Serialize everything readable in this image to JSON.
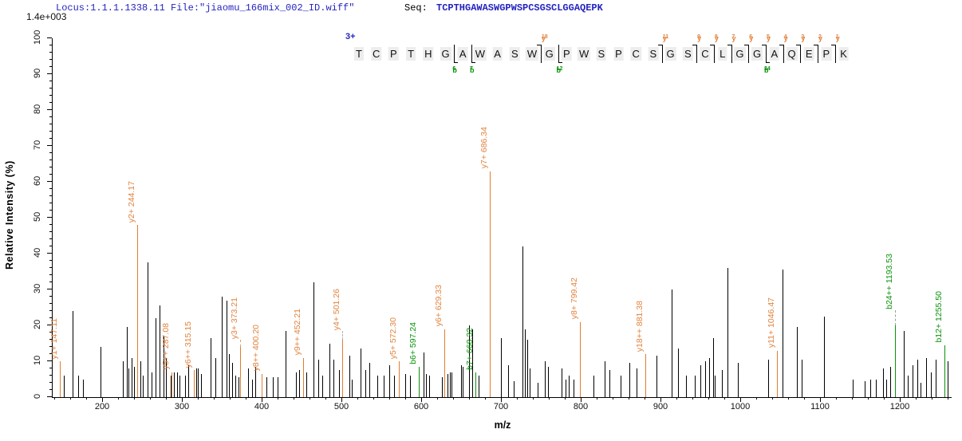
{
  "header": {
    "locus_file": "Locus:1.1.1.1338.11 File:\"jiaomu_166mix_002_ID.wiff\"",
    "seq_label": "Seq:",
    "sequence": "TCPTHGAWASWGPWSPCSGSCLGGAQEPK"
  },
  "colors": {
    "header_blue": "#2424c0",
    "y_ion": "#e07e2e",
    "y_ion_label": "#e2833f",
    "b_ion": "#0a930a",
    "peak_black": "#000000"
  },
  "chart_data": {
    "type": "bar",
    "chart_kind": "ms2-fragmentation-spectrum",
    "title": "",
    "xlabel": "m/z",
    "ylabel": "Relative  Intensity  (%)",
    "intensity_scale": "1.4e+003",
    "xlim": [
      138,
      1265
    ],
    "ylim": [
      0,
      100
    ],
    "x_tick_labels": [
      200,
      300,
      400,
      500,
      600,
      700,
      800,
      900,
      1000,
      1100,
      1200
    ],
    "x_minor_step": 20,
    "y_tick_step": 10,
    "y_minor_step": 2,
    "grid": false,
    "peptide": {
      "charge": "3+",
      "sequence": "TCPTHGAWASWGPWSPCSGSCLGGAQEPK",
      "fragment_markers": [
        {
          "after": 6,
          "b": "b6"
        },
        {
          "after": 7,
          "b": "b7"
        },
        {
          "after": 11,
          "y": "y18"
        },
        {
          "after": 12,
          "b": "b12"
        },
        {
          "after": 18,
          "y": "y11"
        },
        {
          "after": 20,
          "y": "y9"
        },
        {
          "after": 21,
          "y": "y8"
        },
        {
          "after": 22,
          "y": "y7"
        },
        {
          "after": 23,
          "y": "y6"
        },
        {
          "after": 24,
          "y": "y5",
          "b": "b24"
        },
        {
          "after": 25,
          "y": "y4"
        },
        {
          "after": 26,
          "y": "y3"
        },
        {
          "after": 27,
          "y": "y2"
        },
        {
          "after": 28,
          "y": "y1"
        }
      ]
    },
    "labeled_peaks": [
      {
        "ion": "y1+",
        "mz": "147.11",
        "intensity": 10,
        "series": "y"
      },
      {
        "ion": "y2+",
        "mz": "244.17",
        "intensity": 48,
        "series": "y"
      },
      {
        "ion": "y5++",
        "mz": "287.08",
        "intensity": 7,
        "series": "y"
      },
      {
        "ion": "y6++",
        "mz": "315.15",
        "intensity": 7.5,
        "series": "y"
      },
      {
        "ion": "y3+",
        "mz": "373.21",
        "intensity": 14,
        "series": "y",
        "leader": 10,
        "leader_color": "#dba05f"
      },
      {
        "ion": "y8++",
        "mz": "400.20",
        "intensity": 6.5,
        "series": "y"
      },
      {
        "ion": "y9++",
        "mz": "452.21",
        "intensity": 11,
        "series": "y"
      },
      {
        "ion": "y4+",
        "mz": "501.26",
        "intensity": 16,
        "series": "y",
        "leader": 12,
        "leader_color": "#a8b4c4"
      },
      {
        "ion": "y5+",
        "mz": "572.30",
        "intensity": 10,
        "series": "y"
      },
      {
        "ion": "b6+",
        "mz": "597.24",
        "intensity": 8.5,
        "series": "b"
      },
      {
        "ion": "y6+",
        "mz": "629.33",
        "intensity": 19,
        "series": "y"
      },
      {
        "ion": "b7+",
        "mz": "668.32",
        "intensity": 7,
        "series": "b"
      },
      {
        "ion": "y7+",
        "mz": "686.34",
        "intensity": 63,
        "series": "y"
      },
      {
        "ion": "y8+",
        "mz": "799.42",
        "intensity": 21,
        "series": "y"
      },
      {
        "ion": "y18++",
        "mz": "881.38",
        "intensity": 12,
        "series": "y"
      },
      {
        "ion": "y11+",
        "mz": "1046.47",
        "intensity": 13,
        "series": "y"
      },
      {
        "ion": "b24++",
        "mz": "1193.53",
        "intensity": 20,
        "series": "b",
        "leader": 20,
        "leader_color": "#90a890"
      },
      {
        "ion": "b12+",
        "mz": "1255.50",
        "intensity": 14.5,
        "series": "b"
      }
    ],
    "unlabeled_peaks": [
      [
        152,
        6
      ],
      [
        163,
        24
      ],
      [
        170,
        6
      ],
      [
        176,
        5
      ],
      [
        198,
        14
      ],
      [
        226,
        10
      ],
      [
        231,
        19.5
      ],
      [
        233,
        8
      ],
      [
        237,
        11
      ],
      [
        240,
        8.5
      ],
      [
        248,
        10
      ],
      [
        251,
        6
      ],
      [
        257,
        37.5
      ],
      [
        262,
        7
      ],
      [
        267,
        22
      ],
      [
        272,
        25.5
      ],
      [
        277,
        17
      ],
      [
        280,
        11
      ],
      [
        286,
        6
      ],
      [
        290,
        7
      ],
      [
        294,
        7
      ],
      [
        297,
        6
      ],
      [
        304,
        6
      ],
      [
        308,
        9
      ],
      [
        318,
        8
      ],
      [
        320,
        8
      ],
      [
        324,
        6.5
      ],
      [
        336,
        16.5
      ],
      [
        342,
        11
      ],
      [
        350,
        28
      ],
      [
        356,
        27
      ],
      [
        359,
        12
      ],
      [
        363,
        9.5
      ],
      [
        367,
        6
      ],
      [
        371,
        5.5
      ],
      [
        383,
        8
      ],
      [
        388,
        5
      ],
      [
        392,
        8.5
      ],
      [
        406,
        5.5
      ],
      [
        414,
        5.5
      ],
      [
        420,
        5.5
      ],
      [
        430,
        18.5
      ],
      [
        443,
        7
      ],
      [
        447,
        7.5
      ],
      [
        456,
        7
      ],
      [
        465,
        32
      ],
      [
        471,
        10.5
      ],
      [
        476,
        6
      ],
      [
        485,
        15
      ],
      [
        490,
        10.5
      ],
      [
        497,
        7.5
      ],
      [
        510,
        11.5
      ],
      [
        513,
        5
      ],
      [
        524,
        13.5
      ],
      [
        530,
        7.5
      ],
      [
        535,
        9.5
      ],
      [
        545,
        6
      ],
      [
        553,
        6
      ],
      [
        560,
        9
      ],
      [
        566,
        6
      ],
      [
        580,
        6.5
      ],
      [
        586,
        6
      ],
      [
        603,
        12.5
      ],
      [
        606,
        6.5
      ],
      [
        610,
        6
      ],
      [
        626,
        5.5
      ],
      [
        633,
        6.5
      ],
      [
        636,
        7
      ],
      [
        638,
        7
      ],
      [
        650,
        9
      ],
      [
        652,
        8.5
      ],
      [
        660,
        20
      ],
      [
        664,
        19
      ],
      [
        672,
        6
      ],
      [
        700,
        16.5
      ],
      [
        709,
        9
      ],
      [
        716,
        4.5
      ],
      [
        727,
        42
      ],
      [
        730,
        19
      ],
      [
        733,
        16
      ],
      [
        736,
        8
      ],
      [
        746,
        4
      ],
      [
        755,
        10
      ],
      [
        759,
        8.5
      ],
      [
        776,
        8
      ],
      [
        781,
        5
      ],
      [
        785,
        6
      ],
      [
        791,
        5
      ],
      [
        816,
        6
      ],
      [
        830,
        10
      ],
      [
        836,
        7.5
      ],
      [
        850,
        6
      ],
      [
        861,
        9.5
      ],
      [
        870,
        8
      ],
      [
        895,
        11.5
      ],
      [
        914,
        30
      ],
      [
        922,
        13.5
      ],
      [
        932,
        6
      ],
      [
        943,
        6
      ],
      [
        950,
        9
      ],
      [
        956,
        10
      ],
      [
        961,
        11
      ],
      [
        966,
        16.5
      ],
      [
        968,
        6
      ],
      [
        977,
        7.5
      ],
      [
        984,
        36
      ],
      [
        997,
        9.5
      ],
      [
        1035,
        10.5
      ],
      [
        1053,
        35.5
      ],
      [
        1071,
        19.5
      ],
      [
        1077,
        10.5
      ],
      [
        1105,
        22.5
      ],
      [
        1141,
        5
      ],
      [
        1156,
        4.5
      ],
      [
        1163,
        5
      ],
      [
        1170,
        5
      ],
      [
        1179,
        8
      ],
      [
        1183,
        5
      ],
      [
        1188,
        8.5
      ],
      [
        1205,
        18.5
      ],
      [
        1210,
        6
      ],
      [
        1216,
        9
      ],
      [
        1222,
        10.5
      ],
      [
        1226,
        4
      ],
      [
        1233,
        11
      ],
      [
        1239,
        7
      ],
      [
        1245,
        10.5
      ],
      [
        1260,
        10
      ]
    ]
  }
}
